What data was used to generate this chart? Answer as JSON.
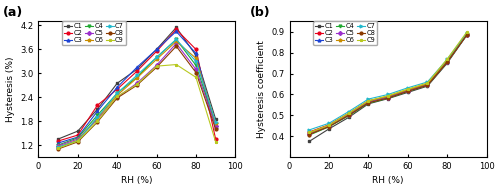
{
  "x": [
    10,
    20,
    30,
    40,
    50,
    60,
    70,
    80,
    90
  ],
  "series_a": {
    "C1": [
      1.35,
      1.55,
      2.1,
      2.75,
      3.1,
      3.6,
      4.15,
      3.45,
      1.85
    ],
    "C2": [
      1.3,
      1.45,
      2.2,
      2.6,
      3.05,
      3.55,
      4.1,
      3.6,
      1.35
    ],
    "C3": [
      1.25,
      1.4,
      2.05,
      2.65,
      3.15,
      3.6,
      4.05,
      3.5,
      1.65
    ],
    "C4": [
      1.2,
      1.38,
      1.95,
      2.5,
      2.9,
      3.4,
      3.85,
      3.2,
      1.72
    ],
    "C5": [
      1.18,
      1.35,
      1.85,
      2.4,
      2.75,
      3.2,
      3.75,
      3.1,
      1.68
    ],
    "C6": [
      1.15,
      1.32,
      1.88,
      2.45,
      2.88,
      3.35,
      3.8,
      3.38,
      1.75
    ],
    "C7": [
      1.15,
      1.3,
      1.9,
      2.5,
      2.95,
      3.4,
      3.85,
      3.3,
      1.78
    ],
    "C8": [
      1.1,
      1.28,
      1.78,
      2.38,
      2.7,
      3.15,
      3.68,
      3.02,
      1.6
    ],
    "C9": [
      1.12,
      1.3,
      1.8,
      2.42,
      2.72,
      3.18,
      3.22,
      2.9,
      1.28
    ]
  },
  "series_b": {
    "C1": [
      0.375,
      0.435,
      0.49,
      0.555,
      0.58,
      0.61,
      0.64,
      0.75,
      0.885
    ],
    "C2": [
      0.42,
      0.455,
      0.51,
      0.57,
      0.59,
      0.62,
      0.65,
      0.76,
      0.89
    ],
    "C3": [
      0.415,
      0.45,
      0.505,
      0.565,
      0.588,
      0.618,
      0.648,
      0.758,
      0.888
    ],
    "C4": [
      0.405,
      0.445,
      0.498,
      0.558,
      0.582,
      0.614,
      0.643,
      0.754,
      0.886
    ],
    "C5": [
      0.41,
      0.448,
      0.502,
      0.562,
      0.585,
      0.616,
      0.645,
      0.756,
      0.887
    ],
    "C6": [
      0.415,
      0.452,
      0.508,
      0.568,
      0.591,
      0.622,
      0.651,
      0.762,
      0.892
    ],
    "C7": [
      0.43,
      0.462,
      0.518,
      0.578,
      0.6,
      0.632,
      0.66,
      0.768,
      0.895
    ],
    "C8": [
      0.408,
      0.446,
      0.5,
      0.56,
      0.583,
      0.615,
      0.644,
      0.755,
      0.886
    ],
    "C9": [
      0.418,
      0.453,
      0.51,
      0.57,
      0.594,
      0.626,
      0.655,
      0.77,
      0.9
    ]
  },
  "colors": {
    "C1": "#3f3f3f",
    "C2": "#e8001c",
    "C3": "#1c42d4",
    "C4": "#22a832",
    "C5": "#9b30cc",
    "C6": "#c88c00",
    "C7": "#22b8cc",
    "C8": "#8b3a00",
    "C9": "#b8c820"
  },
  "markers": {
    "C1": "s",
    "C2": "o",
    "C3": "^",
    "C4": "v",
    "C5": "D",
    "C6": "p",
    "C7": ">",
    "C8": "o",
    "C9": "*"
  },
  "ylim_a": [
    0.9,
    4.3
  ],
  "yticks_a": [
    1.2,
    1.8,
    2.4,
    3.0,
    3.6,
    4.2
  ],
  "ylim_b": [
    0.3,
    0.95
  ],
  "yticks_b": [
    0.4,
    0.5,
    0.6,
    0.7,
    0.8,
    0.9
  ],
  "xlim": [
    0,
    100
  ],
  "xticks": [
    0,
    20,
    40,
    60,
    80,
    100
  ],
  "xlabel": "RH (%)",
  "ylabel_a": "Hysteresis (%)",
  "ylabel_b": "Hysteresis coefficient",
  "label_a": "(a)",
  "label_b": "(b)"
}
